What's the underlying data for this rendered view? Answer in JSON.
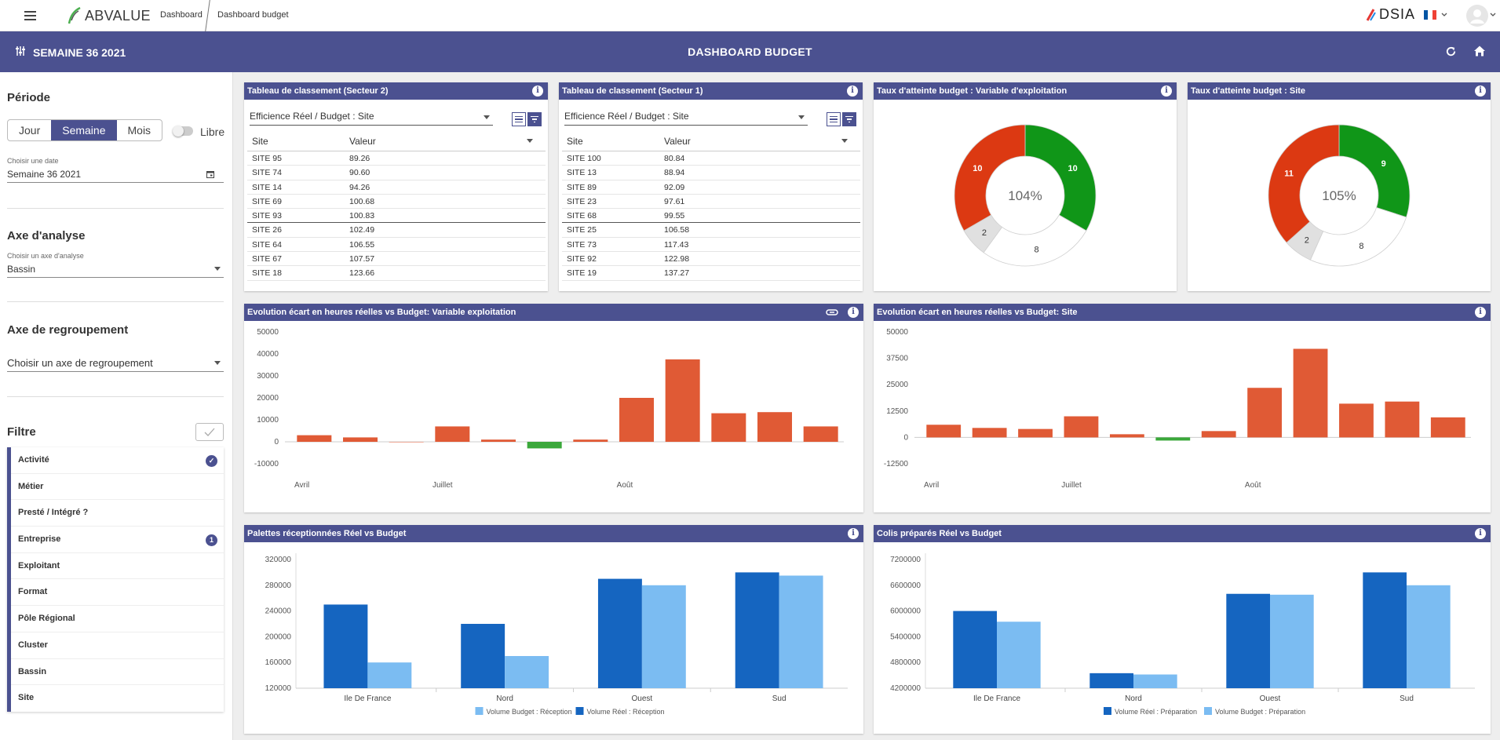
{
  "topbar": {
    "app_name": "ABVALUE",
    "breadcrumbs": [
      "Dashboard",
      "Dashboard budget"
    ],
    "partner_logo": "DSIA"
  },
  "bluebar": {
    "week_label": "SEMAINE 36 2021",
    "title": "DASHBOARD BUDGET"
  },
  "sidebar": {
    "periode_title": "Période",
    "period_options": [
      "Jour",
      "Semaine",
      "Mois"
    ],
    "period_selected": "Semaine",
    "libre_label": "Libre",
    "date_label": "Choisir une date",
    "date_value": "Semaine 36 2021",
    "axe_title": "Axe d'analyse",
    "axe_label": "Choisir un axe d'analyse",
    "axe_value": "Bassin",
    "regroup_title": "Axe de regroupement",
    "regroup_placeholder": "Choisir un axe de regroupement",
    "filtre_title": "Filtre",
    "filters": [
      {
        "label": "Activité",
        "badge": "✓"
      },
      {
        "label": "Métier",
        "badge": ""
      },
      {
        "label": "Presté / Intégré ?",
        "badge": ""
      },
      {
        "label": "Entreprise",
        "badge": "1"
      },
      {
        "label": "Exploitant",
        "badge": ""
      },
      {
        "label": "Format",
        "badge": ""
      },
      {
        "label": "Pôle Régional",
        "badge": ""
      },
      {
        "label": "Cluster",
        "badge": ""
      },
      {
        "label": "Bassin",
        "badge": ""
      },
      {
        "label": "Site",
        "badge": ""
      }
    ]
  },
  "tables": [
    {
      "title": "Tableau de classement (Secteur 2)",
      "select": "Efficience Réel / Budget : Site",
      "col_site": "Site",
      "col_value": "Valeur",
      "rows": [
        [
          "SITE 95",
          "89.26"
        ],
        [
          "SITE 74",
          "90.60"
        ],
        [
          "SITE 14",
          "94.26"
        ],
        [
          "SITE 69",
          "100.68"
        ],
        [
          "SITE 93",
          "100.83"
        ],
        [
          "SITE 26",
          "102.49"
        ],
        [
          "SITE 64",
          "106.55"
        ],
        [
          "SITE 67",
          "107.57"
        ],
        [
          "SITE 18",
          "123.66"
        ]
      ]
    },
    {
      "title": "Tableau de classement (Secteur 1)",
      "select": "Efficience Réel / Budget : Site",
      "col_site": "Site",
      "col_value": "Valeur",
      "rows": [
        [
          "SITE 100",
          "80.84"
        ],
        [
          "SITE 13",
          "88.94"
        ],
        [
          "SITE 89",
          "92.09"
        ],
        [
          "SITE 23",
          "97.61"
        ],
        [
          "SITE 68",
          "99.55"
        ],
        [
          "SITE 25",
          "106.58"
        ],
        [
          "SITE 73",
          "117.43"
        ],
        [
          "SITE 92",
          "122.98"
        ],
        [
          "SITE 19",
          "137.27"
        ]
      ]
    }
  ],
  "colors": {
    "accent": "#4b5190",
    "red": "#dc3912",
    "green": "#109618",
    "grey": "#e0e0e0",
    "orange_bar": "#e05a35",
    "green_bar": "#3aa83a",
    "dark_blue": "#1565c0",
    "light_blue": "#7bbcf2"
  },
  "chart_data": [
    {
      "type": "pie",
      "title": "Taux d'atteinte budget : Variable d'exploitation",
      "center_label": "104%",
      "slices": [
        {
          "value": 10,
          "color": "#109618"
        },
        {
          "value": 8,
          "color": "#ffffff"
        },
        {
          "value": 2,
          "color": "#e0e0e0"
        },
        {
          "value": 10,
          "color": "#dc3912"
        }
      ]
    },
    {
      "type": "pie",
      "title": "Taux d'atteinte budget : Site",
      "center_label": "105%",
      "slices": [
        {
          "value": 9,
          "color": "#109618"
        },
        {
          "value": 8,
          "color": "#ffffff"
        },
        {
          "value": 2,
          "color": "#e0e0e0"
        },
        {
          "value": 11,
          "color": "#dc3912"
        }
      ]
    },
    {
      "type": "bar",
      "title": "Evolution écart en heures réelles vs Budget: Variable exploitation",
      "values": [
        3000,
        2000,
        0,
        7000,
        1000,
        -3000,
        1000,
        20000,
        37500,
        13000,
        13500,
        7000
      ],
      "yticks": [
        50000,
        40000,
        30000,
        20000,
        10000,
        0,
        -10000
      ],
      "ylim": [
        -10000,
        50000
      ],
      "month_labels": [
        {
          "index": 0,
          "label": "Avril"
        },
        {
          "index": 3,
          "label": "Juillet"
        },
        {
          "index": 7,
          "label": "Août"
        }
      ]
    },
    {
      "type": "bar",
      "title": "Evolution écart en heures réelles vs Budget: Site",
      "values": [
        6000,
        4500,
        4000,
        10000,
        1500,
        -1500,
        3000,
        23500,
        42000,
        16000,
        17000,
        9500
      ],
      "yticks": [
        50000,
        37500,
        25000,
        12500,
        0,
        -12500
      ],
      "ylim": [
        -12500,
        50000
      ],
      "month_labels": [
        {
          "index": 0,
          "label": "Avril"
        },
        {
          "index": 3,
          "label": "Juillet"
        },
        {
          "index": 7,
          "label": "Août"
        }
      ]
    },
    {
      "type": "bar",
      "title": "Palettes réceptionnées Réel vs Budget",
      "categories": [
        "Ile De France",
        "Nord",
        "Ouest",
        "Sud"
      ],
      "series": [
        {
          "name": "Volume Réel : Réception",
          "values": [
            250000,
            220000,
            290000,
            300000
          ]
        },
        {
          "name": "Volume Budget : Réception",
          "values": [
            160000,
            170000,
            280000,
            295000
          ]
        }
      ],
      "legend_order": [
        "Volume Budget : Réception",
        "Volume Réel : Réception"
      ],
      "yticks": [
        320000,
        280000,
        240000,
        200000,
        160000,
        120000
      ],
      "ylim": [
        120000,
        320000
      ]
    },
    {
      "type": "bar",
      "title": "Colis préparés Réel vs Budget",
      "categories": [
        "Ile De France",
        "Nord",
        "Ouest",
        "Sud"
      ],
      "series": [
        {
          "name": "Volume Réel : Préparation",
          "values": [
            6000000,
            4550000,
            6400000,
            6900000
          ]
        },
        {
          "name": "Volume Budget : Préparation",
          "values": [
            5750000,
            4520000,
            6380000,
            6600000
          ]
        }
      ],
      "legend_order": [
        "Volume Réel : Préparation",
        "Volume Budget : Préparation"
      ],
      "yticks": [
        7200000,
        6600000,
        6000000,
        5400000,
        4800000,
        4200000
      ],
      "ylim": [
        4200000,
        7200000
      ]
    }
  ]
}
